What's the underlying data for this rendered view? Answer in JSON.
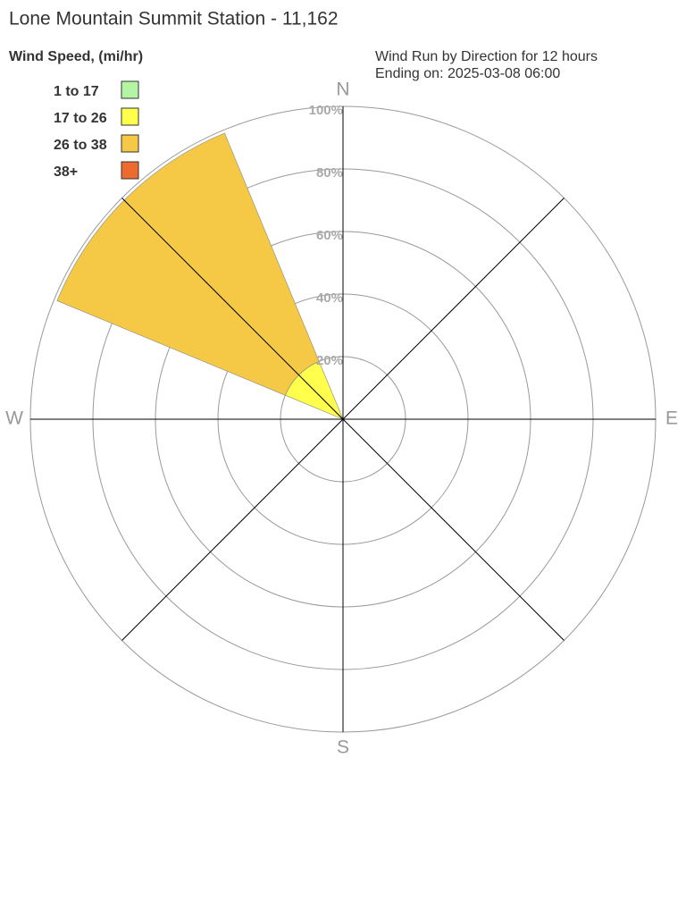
{
  "chart_data": {
    "type": "windrose",
    "title": "Lone Mountain Summit Station - 11,162",
    "legend_title": "Wind Speed, (mi/hr)",
    "subtitle": [
      "Wind Run by Direction for 12 hours",
      "Ending on: 2025-03-08 06:00"
    ],
    "categories": [
      "N",
      null,
      "E",
      null,
      "S",
      null,
      "W",
      null
    ],
    "series": [
      {
        "name": "1 to 17",
        "color": "#b4f5a4",
        "values": [
          0,
          0,
          0,
          0,
          0,
          0,
          0,
          0
        ]
      },
      {
        "name": "17 to 26",
        "color": "#ffff4c",
        "values": [
          0,
          0,
          0,
          0,
          0,
          0,
          0,
          20
        ]
      },
      {
        "name": "26 to 38",
        "color": "#f5c945",
        "values": [
          0,
          0,
          0,
          0,
          0,
          0,
          0,
          79
        ]
      },
      {
        "name": "38+",
        "color": "#ee6b2f",
        "values": [
          0,
          0,
          0,
          0,
          0,
          0,
          0,
          0
        ]
      }
    ],
    "rlim": [
      0,
      100
    ],
    "rticks": [
      {
        "value": 20,
        "label": "20%"
      },
      {
        "value": 40,
        "label": "40%"
      },
      {
        "value": 60,
        "label": "60%"
      },
      {
        "value": 80,
        "label": "80%"
      },
      {
        "value": 100,
        "label": "100%"
      }
    ]
  }
}
